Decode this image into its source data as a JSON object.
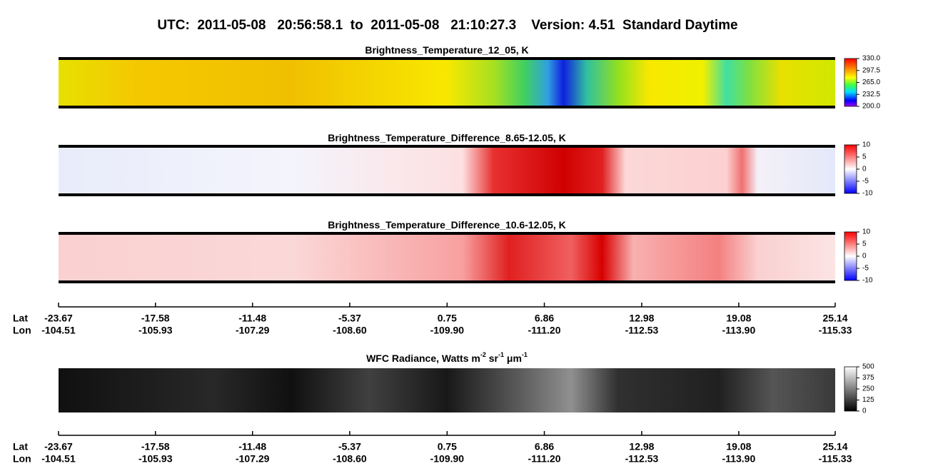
{
  "title": "UTC:  2011-05-08   20:56:58.1  to  2011-05-08   21:10:27.3    Version: 4.51  Standard Daytime",
  "chart_data": [
    {
      "type": "heatmap",
      "title": [
        "Brightness_Temperature_12_05, K"
      ],
      "clim": [
        200,
        330
      ],
      "cticks": [
        {
          "value": 330,
          "label": "330.0"
        },
        297.5,
        {
          "value": 265,
          "label": "265.0"
        },
        232.5,
        {
          "value": 200,
          "label": "200.0"
        }
      ]
    },
    {
      "type": "heatmap",
      "title": [
        "Brightness_Temperature_Difference_8.65-12.05, K"
      ],
      "clim": [
        -10,
        10
      ],
      "cticks": [
        10,
        5,
        0,
        -5,
        -10
      ]
    },
    {
      "type": "heatmap",
      "title": [
        "Brightness_Temperature_Difference_10.6-12.05, K"
      ],
      "clim": [
        -10,
        10
      ],
      "cticks": [
        10,
        5,
        0,
        -5,
        -10
      ]
    },
    {
      "type": "heatmap",
      "title": [
        "WFC Radiance, Watts m",
        "-2",
        " sr",
        "-1",
        " μm",
        "-1"
      ],
      "clim": [
        0,
        500
      ],
      "cticks": [
        500,
        375,
        250,
        125,
        0
      ]
    }
  ],
  "axes": [
    {
      "xlim": [
        -23.67,
        25.14
      ],
      "rows": [
        {
          "label": "Lat",
          "ticks": [
            -23.67,
            -17.58,
            -11.48,
            -5.37,
            0.75,
            6.86,
            12.98,
            19.08,
            25.14
          ]
        },
        {
          "label": "Lon",
          "ticks": [
            -104.51,
            -105.93,
            -107.29,
            {
              "value": -108.6,
              "label": "-108.60"
            },
            {
              "value": -109.9,
              "label": "-109.90"
            },
            {
              "value": -111.2,
              "label": "-111.20"
            },
            -112.53,
            {
              "value": -113.9,
              "label": "-113.90"
            },
            -115.33
          ]
        }
      ]
    },
    {
      "xlim": [
        -23.67,
        25.14
      ],
      "rows": [
        {
          "label": "Lat",
          "ticks": [
            -23.67,
            -17.58,
            -11.48,
            -5.37,
            0.75,
            6.86,
            12.98,
            19.08,
            25.14
          ]
        },
        {
          "label": "Lon",
          "ticks": [
            -104.51,
            -105.93,
            -107.29,
            {
              "value": -108.6,
              "label": "-108.60"
            },
            {
              "value": -109.9,
              "label": "-109.90"
            },
            {
              "value": -111.2,
              "label": "-111.20"
            },
            -112.53,
            {
              "value": -113.9,
              "label": "-113.90"
            },
            -115.33
          ]
        }
      ]
    }
  ]
}
